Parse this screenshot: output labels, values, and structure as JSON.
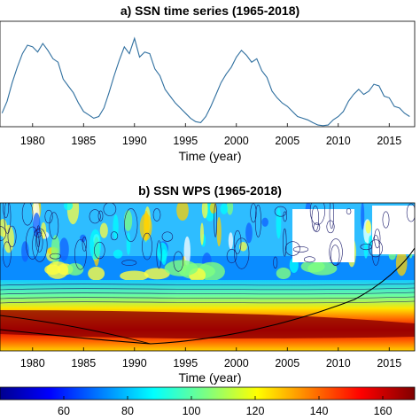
{
  "chart_data": [
    {
      "type": "line",
      "title": "a) SSN time series (1965-2018)",
      "xlabel": "Time (year)",
      "ylabel": "",
      "xlim": [
        1976.8,
        2017.5
      ],
      "ylim": [
        0,
        300
      ],
      "xticks": [
        "1980",
        "1985",
        "1990",
        "1995",
        "2000",
        "2005",
        "2010",
        "2015"
      ],
      "grid": false,
      "series": [
        {
          "color": "#2f6f9f",
          "x": [
            1977.0,
            1977.5,
            1978.0,
            1978.5,
            1979.0,
            1979.5,
            1980.0,
            1980.5,
            1981.0,
            1981.5,
            1982.0,
            1982.5,
            1983.0,
            1983.5,
            1984.0,
            1984.5,
            1985.0,
            1985.5,
            1986.0,
            1986.5,
            1987.0,
            1987.5,
            1988.0,
            1988.5,
            1989.0,
            1989.5,
            1990.0,
            1990.5,
            1991.0,
            1991.5,
            1992.0,
            1992.5,
            1993.0,
            1993.5,
            1994.0,
            1994.5,
            1995.0,
            1995.5,
            1996.0,
            1996.5,
            1997.0,
            1997.5,
            1998.0,
            1998.5,
            1999.0,
            1999.5,
            2000.0,
            2000.5,
            2001.0,
            2001.5,
            2002.0,
            2002.5,
            2003.0,
            2003.5,
            2004.0,
            2004.5,
            2005.0,
            2005.5,
            2006.0,
            2006.5,
            2007.0,
            2007.5,
            2008.0,
            2008.5,
            2009.0,
            2009.5,
            2010.0,
            2010.5,
            2011.0,
            2011.5,
            2012.0,
            2012.5,
            2013.0,
            2013.5,
            2014.0,
            2014.5,
            2015.0,
            2015.5,
            2016.0,
            2016.5,
            2017.0
          ],
          "values": [
            40,
            75,
            130,
            175,
            215,
            240,
            235,
            220,
            245,
            225,
            200,
            190,
            140,
            120,
            100,
            70,
            45,
            35,
            25,
            30,
            55,
            100,
            150,
            195,
            235,
            215,
            260,
            205,
            220,
            215,
            170,
            150,
            110,
            90,
            70,
            55,
            40,
            25,
            15,
            12,
            30,
            60,
            95,
            130,
            155,
            175,
            205,
            225,
            210,
            190,
            200,
            165,
            145,
            105,
            85,
            70,
            60,
            45,
            30,
            25,
            20,
            12,
            5,
            3,
            5,
            20,
            30,
            45,
            75,
            95,
            110,
            95,
            105,
            125,
            120,
            90,
            85,
            60,
            55,
            40,
            30
          ]
        }
      ]
    },
    {
      "type": "heatmap",
      "title": "b) SSN WPS (1965-2018)",
      "xlabel": "Time (year)",
      "xlim": [
        1976.8,
        2017.5
      ],
      "xticks": [
        "1980",
        "1985",
        "1990",
        "1995",
        "2000",
        "2005",
        "2010",
        "2015"
      ],
      "colormap": "jet",
      "colorbar_range": [
        40,
        170
      ],
      "colorbar_ticks": [
        "60",
        "80",
        "100",
        "120",
        "140",
        "160"
      ]
    }
  ]
}
